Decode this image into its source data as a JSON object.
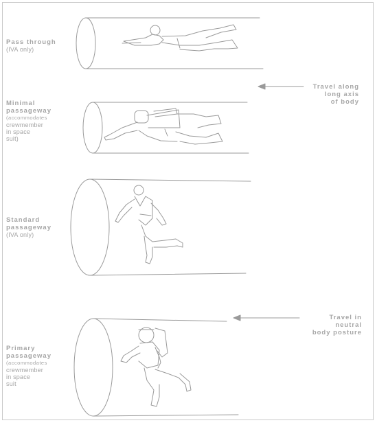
{
  "passages": [
    {
      "title": "Pass through",
      "lines": [
        "(IVA only)"
      ]
    },
    {
      "title_lines": [
        "Minimal",
        "passageway"
      ],
      "small": "(accommodates",
      "lines": [
        "crewmember",
        "in space",
        "suit)"
      ]
    },
    {
      "title_lines": [
        "Standard",
        "passageway"
      ],
      "lines": [
        "(IVA only)"
      ]
    },
    {
      "title_lines": [
        "Primary",
        "passageway"
      ],
      "small": "(accommodates",
      "lines": [
        "crewmember",
        "in space",
        "suit"
      ]
    }
  ],
  "annotations": [
    {
      "lines": [
        "Travel along",
        "long axis",
        "of body"
      ]
    },
    {
      "lines": [
        "Travel in",
        "neutral",
        "body posture"
      ]
    }
  ],
  "colors": {
    "line": "#9a9a9a",
    "text": "#a6a6a6",
    "frame": "#c9c9c9"
  }
}
